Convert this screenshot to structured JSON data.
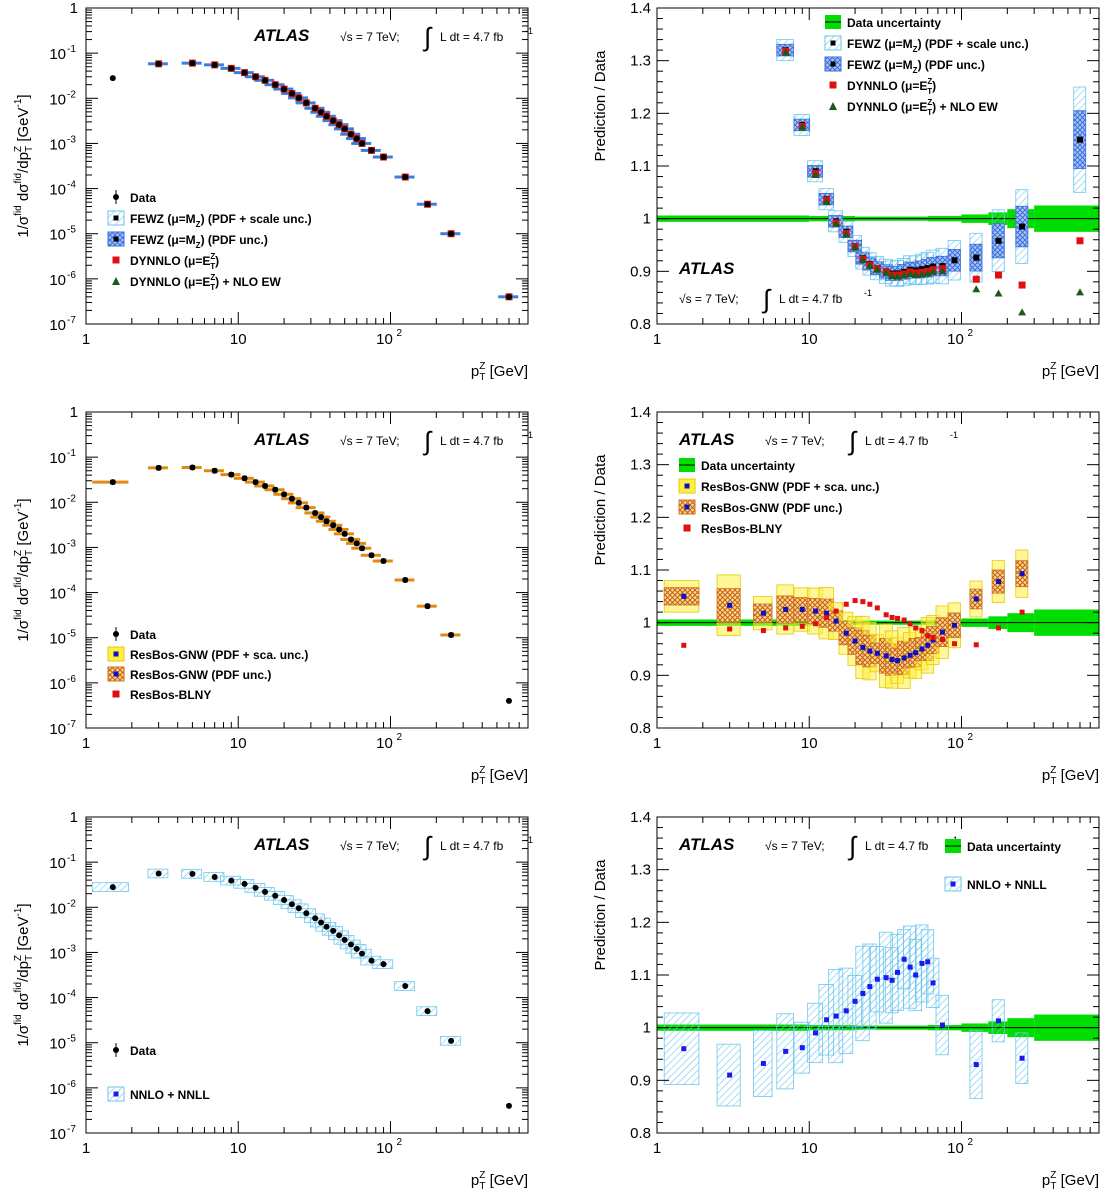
{
  "chart_data": [
    {
      "type": "scatter",
      "panel": "top-left",
      "xscale": "log",
      "yscale": "log",
      "xlim": [
        1,
        800
      ],
      "ylim": [
        1e-07,
        1
      ],
      "xlabel": "p_T^Z [GeV]",
      "ylabel": "1/σ^fid dσ^fid/dp_T^Z [GeV^-1]",
      "annotation": {
        "atlas": "ATLAS",
        "energy": "√s = 7 TeV;",
        "lumi": "L dt = 4.7 fb",
        "lumi_sup": "-1"
      },
      "legend_position": "bottom-left",
      "legend": [
        {
          "label": "Data",
          "style": "data"
        },
        {
          "label": "FEWZ (μ=M",
          "sub": "Z",
          "tail": ") (PDF + scale unc.)",
          "style": "hatch-light",
          "color": "#6ec6f0"
        },
        {
          "label": "FEWZ (μ=M",
          "sub": "Z",
          "tail": ") (PDF unc.)",
          "style": "hatch-cross",
          "color": "#3b6fd4"
        },
        {
          "label": "DYNNLO (μ=E",
          "sup": "Z",
          "sub": "T",
          "tail": ")",
          "style": "square",
          "color": "#e01010"
        },
        {
          "label": "DYNNLO (μ=E",
          "sup": "Z",
          "sub": "T",
          "tail": ") + NLO EW",
          "style": "triangle",
          "color": "#1a5a1a"
        }
      ],
      "data": {
        "x": [
          1.5,
          3,
          5,
          7,
          9,
          11,
          13,
          15,
          17.5,
          20,
          22.5,
          25,
          28,
          32,
          35,
          38,
          42,
          46,
          50,
          55,
          60,
          65,
          75,
          90,
          125,
          175,
          250,
          600
        ],
        "y": [
          0.028,
          0.058,
          0.06,
          0.055,
          0.046,
          0.037,
          0.03,
          0.025,
          0.02,
          0.016,
          0.0128,
          0.0102,
          0.0079,
          0.006,
          0.0049,
          0.004,
          0.0032,
          0.0026,
          0.0021,
          0.0016,
          0.00128,
          0.001,
          0.0007,
          0.0005,
          0.00018,
          4.5e-05,
          1e-05,
          4e-07
        ]
      },
      "bands_primary": {
        "color": "#3a7fe0",
        "edges": [
          2,
          4,
          6,
          8,
          10,
          12,
          14,
          16,
          18,
          22,
          26,
          30,
          34,
          38,
          42,
          46,
          50,
          54,
          60,
          70,
          80,
          100,
          150,
          200,
          300,
          800
        ]
      }
    },
    {
      "type": "scatter",
      "panel": "top-right",
      "xscale": "log",
      "xlim": [
        1,
        800
      ],
      "ylim": [
        0.8,
        1.4
      ],
      "xlabel": "p_T^Z [GeV]",
      "ylabel": "Prediction / Data",
      "annotation": {
        "atlas": "ATLAS",
        "energy": "√s = 7 TeV;",
        "lumi": "L dt = 4.7 fb",
        "lumi_sup": "-1"
      },
      "legend_position": "top-left",
      "legend": [
        {
          "label": "Data uncertainty",
          "style": "green-band",
          "color": "#00dd00"
        },
        {
          "label": "FEWZ (μ=M",
          "sub": "Z",
          "tail": ") (PDF + scale unc.)",
          "style": "hatch-light",
          "color": "#6ec6f0"
        },
        {
          "label": "FEWZ (μ=M",
          "sub": "Z",
          "tail": ") (PDF unc.)",
          "style": "hatch-cross",
          "color": "#3b6fd4"
        },
        {
          "label": "DYNNLO (μ=E",
          "sup": "Z",
          "sub": "T",
          "tail": ")",
          "style": "square",
          "color": "#e01010"
        },
        {
          "label": "DYNNLO (μ=E",
          "sup": "Z",
          "sub": "T",
          "tail": ") + NLO EW",
          "style": "triangle",
          "color": "#1a5a1a"
        }
      ],
      "series": [
        {
          "name": "FEWZ (μ=M_Z)",
          "x": [
            7,
            9,
            11,
            13,
            15,
            17.5,
            20,
            22.5,
            25,
            28,
            32,
            35,
            38,
            42,
            46,
            50,
            55,
            60,
            65,
            75,
            90,
            125,
            175,
            250,
            600
          ],
          "y": [
            1.32,
            1.178,
            1.09,
            1.037,
            0.995,
            0.975,
            0.948,
            0.925,
            0.914,
            0.906,
            0.9,
            0.896,
            0.896,
            0.899,
            0.903,
            0.902,
            0.904,
            0.906,
            0.909,
            0.91,
            0.921,
            0.926,
            0.958,
            0.985,
            1.15
          ]
        },
        {
          "name": "DYNNLO (μ=E_T^Z)",
          "x": [
            7,
            9,
            11,
            13,
            15,
            17.5,
            20,
            22.5,
            25,
            28,
            32,
            35,
            38,
            42,
            46,
            50,
            55,
            60,
            65,
            75,
            125,
            175,
            250,
            600
          ],
          "y": [
            1.318,
            1.175,
            1.086,
            1.035,
            0.992,
            0.972,
            0.947,
            0.923,
            0.912,
            0.905,
            0.899,
            0.893,
            0.893,
            0.895,
            0.899,
            0.897,
            0.898,
            0.9,
            0.903,
            0.905,
            0.885,
            0.893,
            0.874,
            0.958
          ]
        },
        {
          "name": "DYNNLO (μ=E_T^Z) + NLO EW",
          "x": [
            7,
            9,
            11,
            13,
            15,
            17.5,
            20,
            22.5,
            25,
            28,
            32,
            35,
            38,
            42,
            46,
            50,
            55,
            60,
            65,
            75,
            125,
            175,
            250,
            600
          ],
          "y": [
            1.315,
            1.173,
            1.083,
            1.032,
            0.99,
            0.97,
            0.945,
            0.921,
            0.91,
            0.903,
            0.897,
            0.891,
            0.89,
            0.892,
            0.895,
            0.893,
            0.894,
            0.896,
            0.899,
            0.9,
            0.866,
            0.858,
            0.822,
            0.86
          ]
        }
      ]
    },
    {
      "type": "scatter",
      "panel": "middle-left",
      "xscale": "log",
      "yscale": "log",
      "xlim": [
        1,
        800
      ],
      "ylim": [
        1e-07,
        1
      ],
      "xlabel": "p_T^Z [GeV]",
      "ylabel": "1/σ^fid dσ^fid/dp_T^Z [GeV^-1]",
      "annotation": {
        "atlas": "ATLAS",
        "energy": "√s = 7 TeV;",
        "lumi": "L dt = 4.7 fb",
        "lumi_sup": "-1"
      },
      "legend_position": "bottom-left",
      "legend": [
        {
          "label": "Data",
          "style": "data"
        },
        {
          "label": "ResBos-GNW (PDF + sca. unc.)",
          "style": "yellow-band",
          "color": "#ffee44"
        },
        {
          "label": "ResBos-GNW (PDF unc.)",
          "style": "hatch-orange",
          "color": "#d07020"
        },
        {
          "label": "ResBos-BLNY",
          "style": "square",
          "color": "#e01010"
        }
      ],
      "data": {
        "x": [
          1.5,
          3,
          5,
          7,
          9,
          11,
          13,
          15,
          17.5,
          20,
          22.5,
          25,
          28,
          32,
          35,
          38,
          42,
          46,
          50,
          55,
          60,
          65,
          75,
          90,
          125,
          175,
          250,
          600
        ],
        "y": [
          0.028,
          0.058,
          0.059,
          0.05,
          0.041,
          0.034,
          0.028,
          0.023,
          0.019,
          0.015,
          0.012,
          0.0097,
          0.0076,
          0.0058,
          0.0047,
          0.0038,
          0.0031,
          0.0025,
          0.002,
          0.0015,
          0.00123,
          0.00096,
          0.00067,
          0.0005,
          0.00019,
          5e-05,
          1.15e-05,
          4e-07
        ]
      },
      "bands_primary": {
        "color": "#e08a10",
        "edges": [
          1,
          2,
          4,
          6,
          8,
          10,
          12,
          14,
          16,
          18,
          22,
          26,
          30,
          34,
          38,
          42,
          46,
          50,
          54,
          60,
          70,
          80,
          100,
          150,
          200,
          300
        ]
      }
    },
    {
      "type": "scatter",
      "panel": "middle-right",
      "xscale": "log",
      "xlim": [
        1,
        800
      ],
      "ylim": [
        0.8,
        1.4
      ],
      "xlabel": "p_T^Z [GeV]",
      "ylabel": "Prediction / Data",
      "annotation": {
        "atlas": "ATLAS",
        "energy": "√s = 7 TeV;",
        "lumi": "L dt = 4.7 fb",
        "lumi_sup": "-1"
      },
      "legend_position": "top-left",
      "legend": [
        {
          "label": "Data uncertainty",
          "style": "green-band",
          "color": "#00dd00"
        },
        {
          "label": "ResBos-GNW (PDF + sca. unc.)",
          "style": "yellow-band",
          "color": "#ffee44"
        },
        {
          "label": "ResBos-GNW (PDF unc.)",
          "style": "hatch-orange",
          "color": "#d07020"
        },
        {
          "label": "ResBos-BLNY",
          "style": "square",
          "color": "#e01010"
        }
      ],
      "series": [
        {
          "name": "ResBos-GNW",
          "x": [
            1.5,
            3,
            5,
            7,
            9,
            11,
            13,
            15,
            17.5,
            20,
            22.5,
            25,
            28,
            32,
            35,
            38,
            42,
            46,
            50,
            55,
            60,
            65,
            75,
            90,
            125,
            175,
            250
          ],
          "y": [
            1.05,
            1.033,
            1.018,
            1.025,
            1.025,
            1.022,
            1.018,
            1.003,
            0.98,
            0.965,
            0.953,
            0.946,
            0.942,
            0.937,
            0.93,
            0.928,
            0.933,
            0.938,
            0.943,
            0.95,
            0.957,
            0.967,
            0.982,
            0.995,
            1.045,
            1.078,
            1.093
          ]
        },
        {
          "name": "ResBos-BLNY",
          "x": [
            1.5,
            3,
            5,
            7,
            9,
            11,
            13,
            15,
            17.5,
            20,
            22.5,
            25,
            28,
            32,
            35,
            38,
            42,
            46,
            50,
            55,
            60,
            65,
            75,
            90,
            125,
            175,
            250
          ],
          "y": [
            0.957,
            0.988,
            0.985,
            0.99,
            0.993,
            0.998,
            1.01,
            1.022,
            1.035,
            1.042,
            1.04,
            1.035,
            1.028,
            1.015,
            1.01,
            1.008,
            1.005,
            0.998,
            0.99,
            0.985,
            0.975,
            0.972,
            0.968,
            0.96,
            0.958,
            0.99,
            1.02
          ]
        }
      ]
    },
    {
      "type": "scatter",
      "panel": "bottom-left",
      "xscale": "log",
      "yscale": "log",
      "xlim": [
        1,
        800
      ],
      "ylim": [
        1e-07,
        1
      ],
      "xlabel": "p_T^Z [GeV]",
      "ylabel": "1/σ^fid dσ^fid/dp_T^Z [GeV^-1]",
      "annotation": {
        "atlas": "ATLAS",
        "energy": "√s = 7 TeV;",
        "lumi": "L dt = 4.7 fb",
        "lumi_sup": "-1"
      },
      "legend_position": "bottom-left",
      "legend": [
        {
          "label": "Data",
          "style": "data"
        },
        {
          "label": "NNLO + NNLL",
          "style": "hatch-light-blue",
          "color": "#6ec6f0"
        }
      ],
      "data": {
        "x": [
          1.5,
          3,
          5,
          7,
          9,
          11,
          13,
          15,
          17.5,
          20,
          22.5,
          25,
          28,
          32,
          35,
          38,
          42,
          46,
          50,
          55,
          60,
          65,
          75,
          90,
          125,
          175,
          250,
          600
        ],
        "y": [
          0.028,
          0.056,
          0.055,
          0.047,
          0.039,
          0.033,
          0.027,
          0.022,
          0.018,
          0.0145,
          0.0117,
          0.0095,
          0.0074,
          0.0057,
          0.0046,
          0.0037,
          0.003,
          0.0024,
          0.0019,
          0.0015,
          0.0012,
          0.00094,
          0.00066,
          0.00055,
          0.00018,
          5e-05,
          1.1e-05,
          4e-07
        ]
      },
      "bands_primary": {
        "color": "#6ec6f0",
        "edges": [
          1,
          2,
          4,
          6,
          8,
          10,
          12,
          14,
          16,
          18,
          22,
          26,
          30,
          34,
          38,
          42,
          46,
          50,
          54,
          60,
          70,
          80,
          100,
          150,
          200,
          300
        ]
      }
    },
    {
      "type": "scatter",
      "panel": "bottom-right",
      "xscale": "log",
      "xlim": [
        1,
        800
      ],
      "ylim": [
        0.8,
        1.4
      ],
      "xlabel": "p_T^Z [GeV]",
      "ylabel": "Prediction / Data",
      "annotation": {
        "atlas": "ATLAS",
        "energy": "√s = 7 TeV;",
        "lumi": "L dt = 4.7 fb",
        "lumi_sup": "-1"
      },
      "legend_position": "top-right",
      "legend": [
        {
          "label": "Data uncertainty",
          "style": "green-band",
          "color": "#00dd00"
        },
        {
          "label": "NNLO + NNLL",
          "style": "hatch-light-blue",
          "color": "#6ec6f0"
        }
      ],
      "series": [
        {
          "name": "NNLO + NNLL",
          "x": [
            1.5,
            3,
            5,
            7,
            9,
            11,
            13,
            15,
            17.5,
            20,
            22.5,
            25,
            28,
            32,
            35,
            38,
            42,
            46,
            50,
            55,
            60,
            65,
            75,
            125,
            175,
            250
          ],
          "y": [
            0.96,
            0.91,
            0.932,
            0.955,
            0.962,
            0.99,
            1.015,
            1.022,
            1.032,
            1.05,
            1.065,
            1.078,
            1.092,
            1.095,
            1.09,
            1.105,
            1.13,
            1.115,
            1.1,
            1.122,
            1.125,
            1.085,
            1.005,
            0.93,
            1.013,
            0.942
          ]
        }
      ]
    }
  ],
  "colors": {
    "data": "#000000",
    "data_uncertainty": "#00dd00",
    "fewz_scale": "#6ec6f0",
    "fewz_pdf": "#3b6fd4",
    "dynnlo": "#e01010",
    "dynnlo_ew": "#1a5a1a",
    "resbos_yellow": "#ffee44",
    "resbos_orange": "#d07020",
    "resbos_marker": "#1010c0",
    "nnll": "#6ec6f0",
    "nnll_marker": "#1a1af0"
  }
}
